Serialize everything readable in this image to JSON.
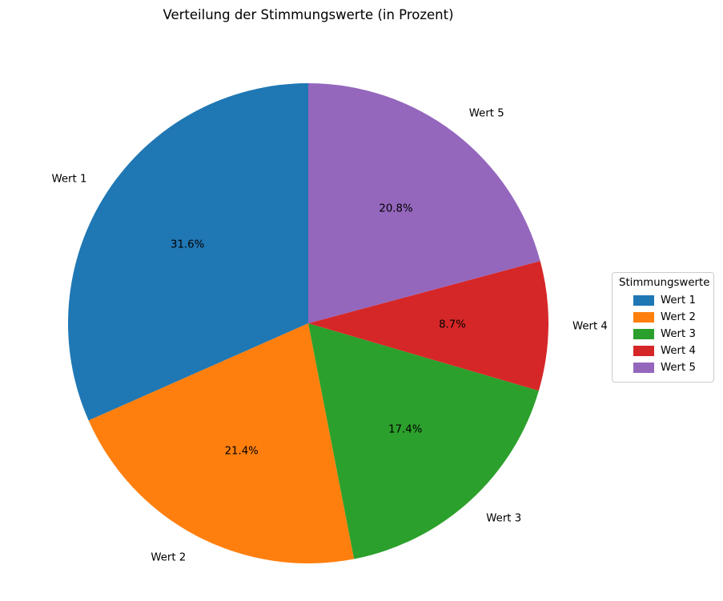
{
  "chart_data": {
    "type": "pie",
    "title": "Verteilung der Stimmungswerte (in Prozent)",
    "labels": [
      "Wert 1",
      "Wert 2",
      "Wert 3",
      "Wert 4",
      "Wert 5"
    ],
    "values": [
      31.6,
      21.4,
      17.4,
      8.7,
      20.8
    ],
    "pct_labels": [
      "31.6%",
      "21.4%",
      "17.4%",
      "8.7%",
      "20.8%"
    ],
    "colors": [
      "#1f77b4",
      "#ff7f0e",
      "#2ca02c",
      "#d62728",
      "#9467bd"
    ],
    "startangle": 90,
    "counterclock": true,
    "pctdistance": 0.6,
    "labeldistance": 1.1,
    "legend": {
      "title": "Stimmungswerte",
      "entries": [
        "Wert 1",
        "Wert 2",
        "Wert 3",
        "Wert 4",
        "Wert 5"
      ]
    }
  }
}
